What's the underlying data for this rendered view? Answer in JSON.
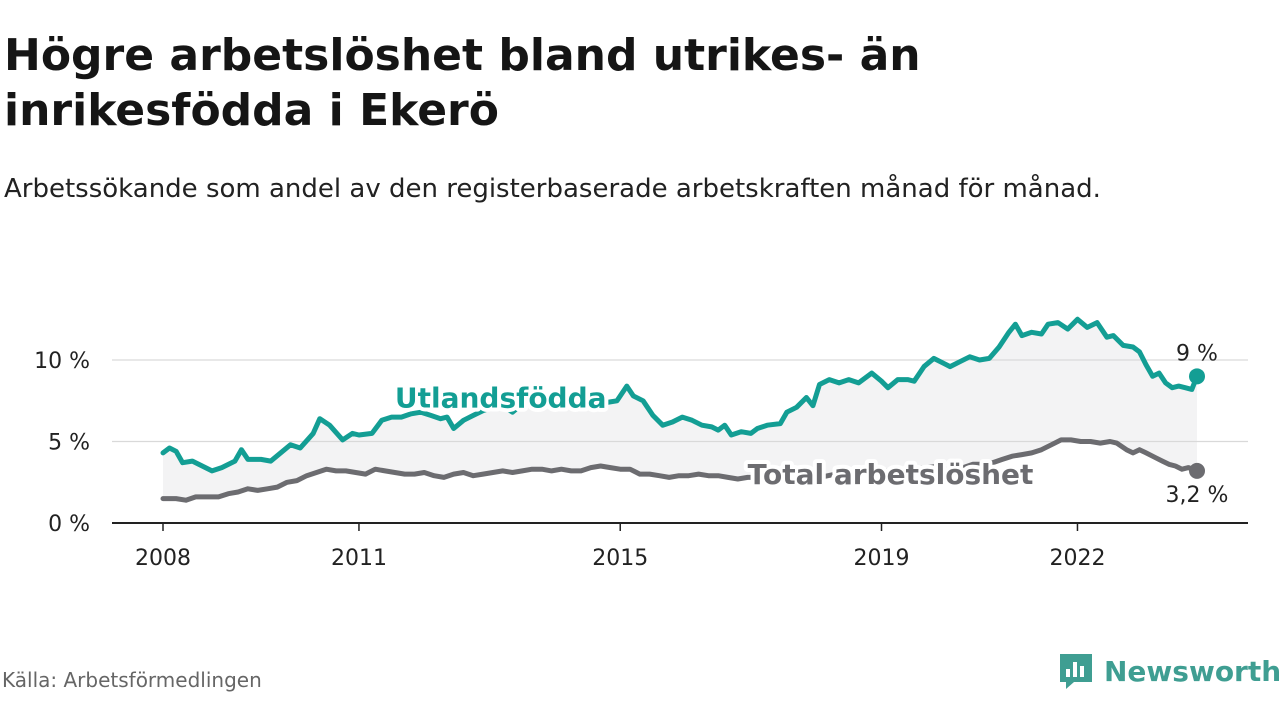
{
  "header": {
    "title": "Högre arbetslöshet bland utrikes- än inrikesfödda i Ekerö",
    "subtitle": "Arbetssökande som andel av den registerbaserade arbetskraften månad för månad."
  },
  "footer": {
    "source": "Källa: Arbetsförmedlingen",
    "brand": "Newsworthy"
  },
  "colors": {
    "utlandsfodda": "#139e94",
    "total": "#6c6c70",
    "band": "#f3f3f4",
    "grid": "#d9d9d9",
    "axis": "#222222",
    "brand": "#3f9e92"
  },
  "chart_data": {
    "type": "line",
    "title": "Högre arbetslöshet bland utrikes- än inrikesfödda i Ekerö",
    "xlabel": "",
    "ylabel": "",
    "xlim": [
      2008.0,
      2023.83
    ],
    "ylim": [
      0,
      13.5
    ],
    "y_ticks": [
      {
        "value": 0,
        "label": "0 %"
      },
      {
        "value": 5,
        "label": "5 %"
      },
      {
        "value": 10,
        "label": "10 %"
      }
    ],
    "x_ticks": [
      {
        "value": 2008,
        "label": "2008"
      },
      {
        "value": 2011,
        "label": "2011"
      },
      {
        "value": 2015,
        "label": "2015"
      },
      {
        "value": 2019,
        "label": "2019"
      },
      {
        "value": 2022,
        "label": "2022"
      }
    ],
    "grid": true,
    "series": [
      {
        "name": "Utlandsfödda",
        "color": "#139e94",
        "label": "Utlandsfödda",
        "end_label": "9 %",
        "points": [
          [
            2008.0,
            4.3
          ],
          [
            2008.1,
            4.6
          ],
          [
            2008.2,
            4.4
          ],
          [
            2008.3,
            3.7
          ],
          [
            2008.45,
            3.8
          ],
          [
            2008.6,
            3.5
          ],
          [
            2008.75,
            3.2
          ],
          [
            2008.9,
            3.4
          ],
          [
            2009.1,
            3.8
          ],
          [
            2009.2,
            4.5
          ],
          [
            2009.3,
            3.9
          ],
          [
            2009.5,
            3.9
          ],
          [
            2009.65,
            3.8
          ],
          [
            2009.8,
            4.3
          ],
          [
            2009.95,
            4.8
          ],
          [
            2010.1,
            4.6
          ],
          [
            2010.3,
            5.5
          ],
          [
            2010.4,
            6.4
          ],
          [
            2010.55,
            6.0
          ],
          [
            2010.75,
            5.1
          ],
          [
            2010.9,
            5.5
          ],
          [
            2011.0,
            5.4
          ],
          [
            2011.2,
            5.5
          ],
          [
            2011.35,
            6.3
          ],
          [
            2011.5,
            6.5
          ],
          [
            2011.65,
            6.5
          ],
          [
            2011.8,
            6.7
          ],
          [
            2011.95,
            6.8
          ],
          [
            2012.1,
            6.6
          ],
          [
            2012.25,
            6.4
          ],
          [
            2012.35,
            6.5
          ],
          [
            2012.45,
            5.8
          ],
          [
            2012.6,
            6.3
          ],
          [
            2012.75,
            6.6
          ],
          [
            2012.9,
            6.9
          ],
          [
            2013.05,
            7.1
          ],
          [
            2013.2,
            7.2
          ],
          [
            2013.35,
            6.8
          ],
          [
            2013.5,
            7.3
          ],
          [
            2013.65,
            7.6
          ],
          [
            2013.8,
            8.2
          ],
          [
            2013.95,
            7.2
          ],
          [
            2014.05,
            7.5
          ],
          [
            2014.6,
            7.4
          ],
          [
            2014.8,
            7.4
          ],
          [
            2014.95,
            7.5
          ],
          [
            2015.1,
            8.4
          ],
          [
            2015.2,
            7.8
          ],
          [
            2015.35,
            7.5
          ],
          [
            2015.5,
            6.6
          ],
          [
            2015.65,
            6.0
          ],
          [
            2015.8,
            6.2
          ],
          [
            2015.95,
            6.5
          ],
          [
            2016.1,
            6.3
          ],
          [
            2016.25,
            6.0
          ],
          [
            2016.4,
            5.9
          ],
          [
            2016.5,
            5.7
          ],
          [
            2016.6,
            6.0
          ],
          [
            2016.7,
            5.4
          ],
          [
            2016.85,
            5.6
          ],
          [
            2017.0,
            5.5
          ],
          [
            2017.1,
            5.8
          ],
          [
            2017.25,
            6.0
          ],
          [
            2017.45,
            6.1
          ],
          [
            2017.55,
            6.8
          ],
          [
            2017.7,
            7.1
          ],
          [
            2017.85,
            7.7
          ],
          [
            2017.95,
            7.2
          ],
          [
            2018.05,
            8.5
          ],
          [
            2018.2,
            8.8
          ],
          [
            2018.35,
            8.6
          ],
          [
            2018.5,
            8.8
          ],
          [
            2018.65,
            8.6
          ],
          [
            2018.85,
            9.2
          ],
          [
            2019.0,
            8.7
          ],
          [
            2019.1,
            8.3
          ],
          [
            2019.25,
            8.8
          ],
          [
            2019.4,
            8.8
          ],
          [
            2019.5,
            8.7
          ],
          [
            2019.65,
            9.6
          ],
          [
            2019.8,
            10.1
          ],
          [
            2019.95,
            9.8
          ],
          [
            2020.05,
            9.6
          ],
          [
            2020.2,
            9.9
          ],
          [
            2020.35,
            10.2
          ],
          [
            2020.5,
            10.0
          ],
          [
            2020.65,
            10.1
          ],
          [
            2020.8,
            10.8
          ],
          [
            2020.95,
            11.7
          ],
          [
            2021.05,
            12.2
          ],
          [
            2021.15,
            11.5
          ],
          [
            2021.3,
            11.7
          ],
          [
            2021.45,
            11.6
          ],
          [
            2021.55,
            12.2
          ],
          [
            2021.7,
            12.3
          ],
          [
            2021.85,
            11.9
          ],
          [
            2022.0,
            12.5
          ],
          [
            2022.15,
            12.0
          ],
          [
            2022.3,
            12.3
          ],
          [
            2022.45,
            11.4
          ],
          [
            2022.55,
            11.5
          ],
          [
            2022.7,
            10.9
          ],
          [
            2022.85,
            10.8
          ],
          [
            2022.95,
            10.5
          ],
          [
            2023.05,
            9.7
          ],
          [
            2023.15,
            9.0
          ],
          [
            2023.25,
            9.2
          ],
          [
            2023.35,
            8.6
          ],
          [
            2023.45,
            8.3
          ],
          [
            2023.55,
            8.4
          ],
          [
            2023.65,
            8.3
          ],
          [
            2023.75,
            8.2
          ],
          [
            2023.83,
            9.0
          ]
        ]
      },
      {
        "name": "Total arbetslöshet",
        "color": "#6c6c70",
        "label": "Total arbetslöshet",
        "end_label": "3,2 %",
        "points": [
          [
            2008.0,
            1.5
          ],
          [
            2008.2,
            1.5
          ],
          [
            2008.35,
            1.4
          ],
          [
            2008.5,
            1.6
          ],
          [
            2008.7,
            1.6
          ],
          [
            2008.85,
            1.6
          ],
          [
            2009.0,
            1.8
          ],
          [
            2009.15,
            1.9
          ],
          [
            2009.3,
            2.1
          ],
          [
            2009.45,
            2.0
          ],
          [
            2009.6,
            2.1
          ],
          [
            2009.75,
            2.2
          ],
          [
            2009.9,
            2.5
          ],
          [
            2010.05,
            2.6
          ],
          [
            2010.2,
            2.9
          ],
          [
            2010.35,
            3.1
          ],
          [
            2010.5,
            3.3
          ],
          [
            2010.65,
            3.2
          ],
          [
            2010.8,
            3.2
          ],
          [
            2010.95,
            3.1
          ],
          [
            2011.1,
            3.0
          ],
          [
            2011.25,
            3.3
          ],
          [
            2011.4,
            3.2
          ],
          [
            2011.55,
            3.1
          ],
          [
            2011.7,
            3.0
          ],
          [
            2011.85,
            3.0
          ],
          [
            2012.0,
            3.1
          ],
          [
            2012.15,
            2.9
          ],
          [
            2012.3,
            2.8
          ],
          [
            2012.45,
            3.0
          ],
          [
            2012.6,
            3.1
          ],
          [
            2012.75,
            2.9
          ],
          [
            2012.9,
            3.0
          ],
          [
            2013.05,
            3.1
          ],
          [
            2013.2,
            3.2
          ],
          [
            2013.35,
            3.1
          ],
          [
            2013.5,
            3.2
          ],
          [
            2013.65,
            3.3
          ],
          [
            2013.8,
            3.3
          ],
          [
            2013.95,
            3.2
          ],
          [
            2014.1,
            3.3
          ],
          [
            2014.25,
            3.2
          ],
          [
            2014.4,
            3.2
          ],
          [
            2014.55,
            3.4
          ],
          [
            2014.7,
            3.5
          ],
          [
            2014.85,
            3.4
          ],
          [
            2015.0,
            3.3
          ],
          [
            2015.15,
            3.3
          ],
          [
            2015.3,
            3.0
          ],
          [
            2015.45,
            3.0
          ],
          [
            2015.6,
            2.9
          ],
          [
            2015.75,
            2.8
          ],
          [
            2015.9,
            2.9
          ],
          [
            2016.05,
            2.9
          ],
          [
            2016.2,
            3.0
          ],
          [
            2016.35,
            2.9
          ],
          [
            2016.5,
            2.9
          ],
          [
            2016.65,
            2.8
          ],
          [
            2016.8,
            2.7
          ],
          [
            2016.95,
            2.8
          ],
          [
            2017.05,
            2.8
          ],
          [
            2017.25,
            2.8
          ],
          [
            2017.35,
            2.9
          ],
          [
            2017.5,
            2.7
          ],
          [
            2017.6,
            2.7
          ],
          [
            2017.75,
            2.7
          ],
          [
            2017.9,
            2.8
          ],
          [
            2018.05,
            2.8
          ],
          [
            2018.3,
            3.0
          ],
          [
            2018.5,
            3.1
          ],
          [
            2018.7,
            3.1
          ],
          [
            2018.9,
            3.2
          ],
          [
            2019.1,
            3.2
          ],
          [
            2019.3,
            3.3
          ],
          [
            2019.5,
            3.3
          ],
          [
            2019.7,
            3.4
          ],
          [
            2019.9,
            3.5
          ],
          [
            2020.1,
            3.5
          ],
          [
            2020.25,
            3.4
          ],
          [
            2020.4,
            3.6
          ],
          [
            2020.55,
            3.6
          ],
          [
            2020.7,
            3.7
          ],
          [
            2020.85,
            3.9
          ],
          [
            2021.0,
            4.1
          ],
          [
            2021.15,
            4.2
          ],
          [
            2021.3,
            4.3
          ],
          [
            2021.45,
            4.5
          ],
          [
            2021.6,
            4.8
          ],
          [
            2021.75,
            5.1
          ],
          [
            2021.9,
            5.1
          ],
          [
            2022.05,
            5.0
          ],
          [
            2022.2,
            5.0
          ],
          [
            2022.35,
            4.9
          ],
          [
            2022.5,
            5.0
          ],
          [
            2022.6,
            4.9
          ],
          [
            2022.75,
            4.5
          ],
          [
            2022.85,
            4.3
          ],
          [
            2022.95,
            4.5
          ],
          [
            2023.05,
            4.3
          ],
          [
            2023.2,
            4.0
          ],
          [
            2023.3,
            3.8
          ],
          [
            2023.4,
            3.6
          ],
          [
            2023.5,
            3.5
          ],
          [
            2023.6,
            3.3
          ],
          [
            2023.7,
            3.4
          ],
          [
            2023.83,
            3.2
          ]
        ]
      }
    ]
  }
}
